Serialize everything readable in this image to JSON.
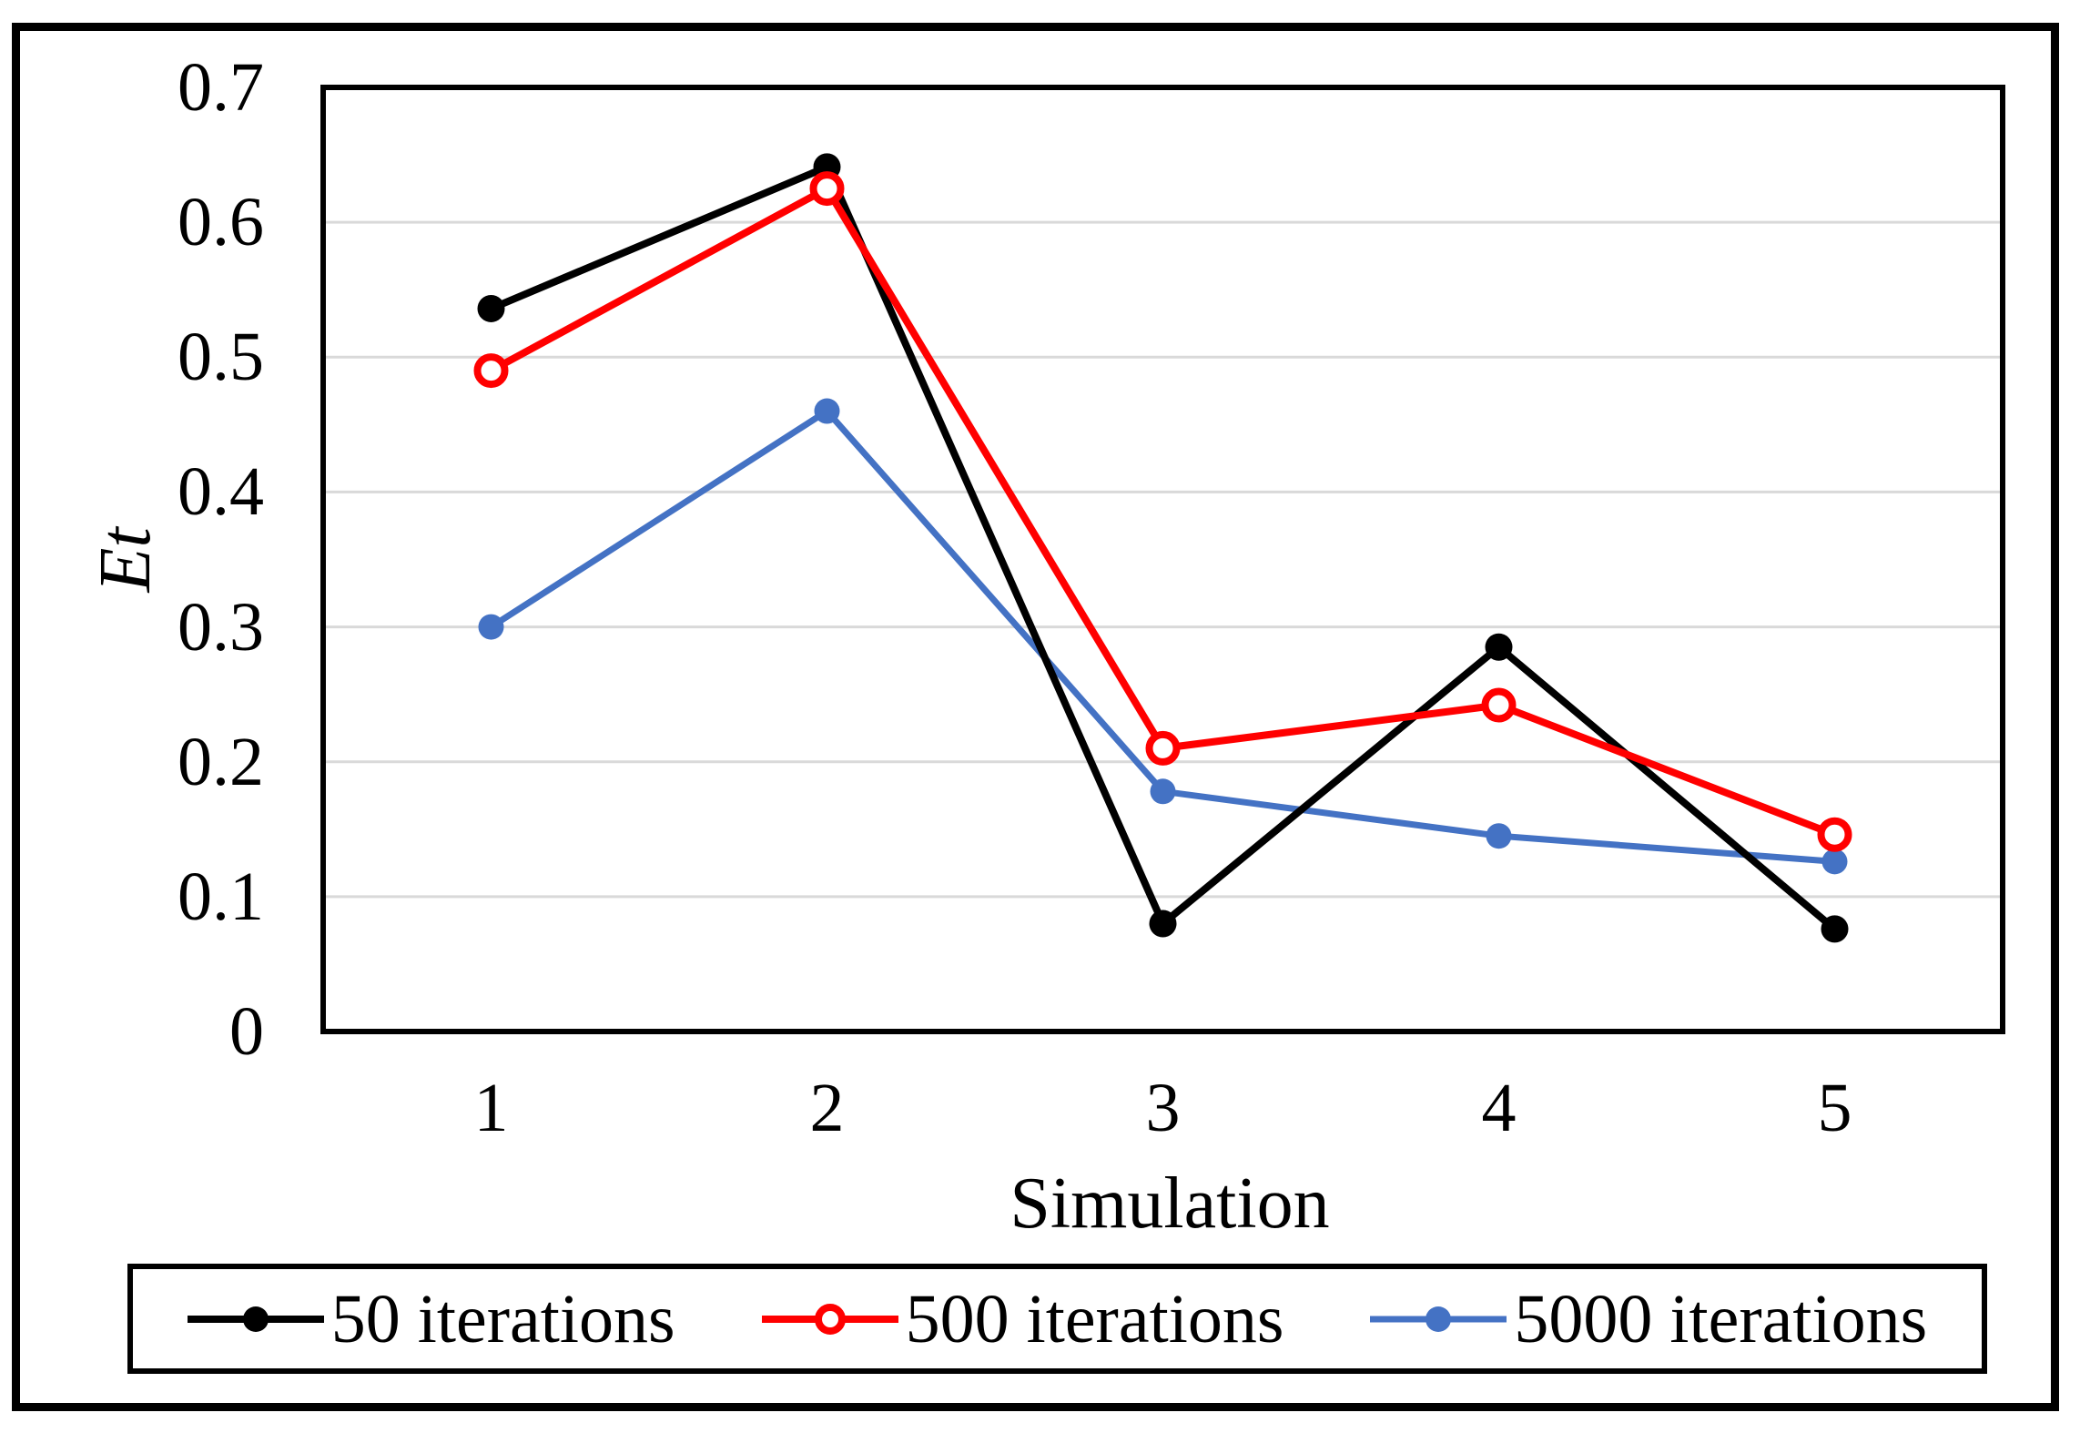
{
  "figure": {
    "background": "#FFFFFF",
    "frame_color": "#000000"
  },
  "chart_data": {
    "type": "line",
    "title": "",
    "xlabel": "Simulation",
    "ylabel": "Et",
    "categories": [
      1,
      2,
      3,
      4,
      5
    ],
    "x_tick_labels": [
      "1",
      "2",
      "3",
      "4",
      "5"
    ],
    "y_ticks": [
      0,
      0.1,
      0.2,
      0.3,
      0.4,
      0.5,
      0.6,
      0.7
    ],
    "y_tick_labels": [
      "0",
      "0.1",
      "0.2",
      "0.3",
      "0.4",
      "0.5",
      "0.6",
      "0.7"
    ],
    "ylim": [
      0,
      0.7
    ],
    "grid": "horizontal",
    "gridline_color": "#D9D9D9",
    "plot_border_color": "#000000",
    "legend_position": "bottom",
    "series": [
      {
        "name": "50 iterations",
        "color": "#000000",
        "marker": "filled-circle",
        "values": [
          0.536,
          0.641,
          0.08,
          0.285,
          0.076
        ]
      },
      {
        "name": "500 iterations",
        "color": "#FF0000",
        "marker": "open-circle",
        "values": [
          0.49,
          0.625,
          0.21,
          0.242,
          0.146
        ]
      },
      {
        "name": "5000 iterations",
        "color": "#4472C4",
        "marker": "filled-circle",
        "values": [
          0.3,
          0.46,
          0.178,
          0.145,
          0.126
        ]
      }
    ]
  }
}
